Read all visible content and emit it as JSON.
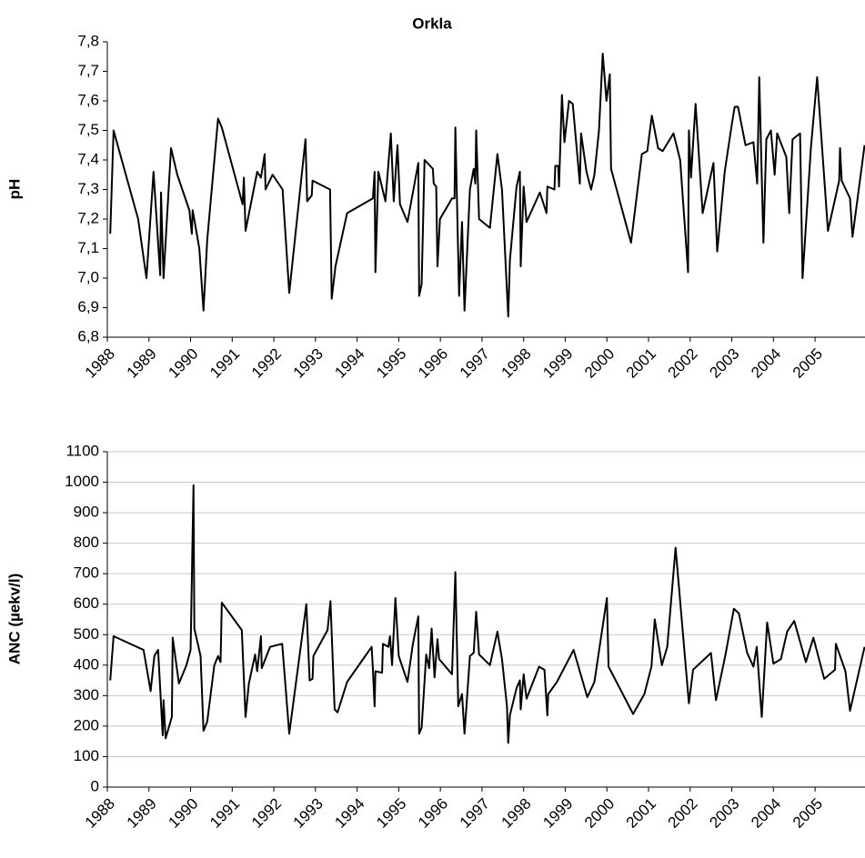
{
  "chart_data": [
    {
      "type": "line",
      "title": "Orkla",
      "y_label": "pH",
      "color": "#000000",
      "grid": false,
      "xlim": [
        1988,
        2006.2
      ],
      "xticks": [
        1988,
        1989,
        1990,
        1991,
        1992,
        1993,
        1994,
        1995,
        1996,
        1997,
        1998,
        1999,
        2000,
        2001,
        2002,
        2003,
        2004,
        2005
      ],
      "ylim": [
        6.8,
        7.8
      ],
      "yticks": [
        {
          "value": 6.8,
          "label": "6,8"
        },
        {
          "value": 6.9,
          "label": "6,9"
        },
        {
          "value": 7.0,
          "label": "7,0"
        },
        {
          "value": 7.1,
          "label": "7,1"
        },
        {
          "value": 7.2,
          "label": "7,2"
        },
        {
          "value": 7.3,
          "label": "7,3"
        },
        {
          "value": 7.4,
          "label": "7,4"
        },
        {
          "value": 7.5,
          "label": "7,5"
        },
        {
          "value": 7.6,
          "label": "7,6"
        },
        {
          "value": 7.7,
          "label": "7,7"
        },
        {
          "value": 7.8,
          "label": "7,8"
        }
      ],
      "x": [
        1988.07,
        1988.15,
        1988.74,
        1988.94,
        1989.11,
        1989.27,
        1989.29,
        1989.35,
        1989.53,
        1989.68,
        1989.97,
        1990.03,
        1990.05,
        1990.21,
        1990.31,
        1990.4,
        1990.66,
        1990.75,
        1991.25,
        1991.28,
        1991.32,
        1991.6,
        1991.69,
        1991.78,
        1991.8,
        1991.97,
        1992.21,
        1992.37,
        1992.76,
        1992.8,
        1992.91,
        1992.93,
        1993.35,
        1993.39,
        1993.48,
        1993.76,
        1994.38,
        1994.42,
        1994.44,
        1994.51,
        1994.68,
        1994.81,
        1994.88,
        1994.97,
        1995.03,
        1995.21,
        1995.47,
        1995.49,
        1995.55,
        1995.62,
        1995.82,
        1995.84,
        1995.9,
        1995.93,
        1995.99,
        1996.28,
        1996.34,
        1996.36,
        1996.45,
        1996.52,
        1996.58,
        1996.71,
        1996.8,
        1996.84,
        1996.86,
        1996.93,
        1997.19,
        1997.37,
        1997.48,
        1997.63,
        1997.67,
        1997.83,
        1997.91,
        1997.93,
        1998.0,
        1998.07,
        1998.39,
        1998.55,
        1998.57,
        1998.74,
        1998.76,
        1998.83,
        1998.85,
        1998.92,
        1998.98,
        1999.09,
        1999.18,
        1999.35,
        1999.38,
        1999.51,
        1999.62,
        1999.7,
        1999.81,
        1999.9,
        1999.99,
        2000.07,
        2000.1,
        2000.58,
        2000.84,
        2000.97,
        2001.08,
        2001.23,
        2001.34,
        2001.6,
        2001.76,
        2001.95,
        2001.97,
        2002.02,
        2002.13,
        2002.3,
        2002.56,
        2002.65,
        2002.83,
        2003.0,
        2003.07,
        2003.15,
        2003.33,
        2003.52,
        2003.61,
        2003.66,
        2003.76,
        2003.83,
        2003.94,
        2004.03,
        2004.09,
        2004.31,
        2004.38,
        2004.46,
        2004.64,
        2004.7,
        2004.9,
        2005.05,
        2005.31,
        2005.58,
        2005.6,
        2005.64,
        2005.84,
        2005.9,
        2006.19
      ],
      "values": [
        7.15,
        7.5,
        7.2,
        7.0,
        7.36,
        7.01,
        7.29,
        7.0,
        7.44,
        7.35,
        7.23,
        7.15,
        7.23,
        7.1,
        6.89,
        7.13,
        7.54,
        7.51,
        7.25,
        7.34,
        7.16,
        7.36,
        7.34,
        7.42,
        7.3,
        7.35,
        7.3,
        6.95,
        7.47,
        7.26,
        7.28,
        7.33,
        7.3,
        6.93,
        7.04,
        7.22,
        7.27,
        7.36,
        7.02,
        7.36,
        7.26,
        7.49,
        7.26,
        7.45,
        7.25,
        7.19,
        7.39,
        6.94,
        6.98,
        7.4,
        7.37,
        7.32,
        7.31,
        7.04,
        7.2,
        7.27,
        7.27,
        7.51,
        6.94,
        7.19,
        6.89,
        7.3,
        7.37,
        7.32,
        7.5,
        7.2,
        7.17,
        7.42,
        7.3,
        6.87,
        7.06,
        7.31,
        7.36,
        7.04,
        7.31,
        7.19,
        7.29,
        7.22,
        7.31,
        7.3,
        7.38,
        7.38,
        7.31,
        7.62,
        7.46,
        7.6,
        7.59,
        7.32,
        7.49,
        7.36,
        7.3,
        7.35,
        7.5,
        7.76,
        7.6,
        7.69,
        7.37,
        7.12,
        7.42,
        7.43,
        7.55,
        7.44,
        7.43,
        7.49,
        7.4,
        7.02,
        7.5,
        7.34,
        7.59,
        7.22,
        7.39,
        7.09,
        7.36,
        7.52,
        7.58,
        7.58,
        7.45,
        7.46,
        7.32,
        7.68,
        7.12,
        7.47,
        7.5,
        7.35,
        7.49,
        7.41,
        7.22,
        7.47,
        7.49,
        7.0,
        7.44,
        7.68,
        7.16,
        7.33,
        7.44,
        7.33,
        7.27,
        7.14,
        7.45
      ]
    },
    {
      "type": "line",
      "y_label": "ANC (µekv/l)",
      "color": "#000000",
      "grid": true,
      "xlim": [
        1988,
        2006.2
      ],
      "xticks": [
        1988,
        1989,
        1990,
        1991,
        1992,
        1993,
        1994,
        1995,
        1996,
        1997,
        1998,
        1999,
        2000,
        2001,
        2002,
        2003,
        2004,
        2005
      ],
      "ylim": [
        0,
        1100
      ],
      "yticks": [
        0,
        100,
        200,
        300,
        400,
        500,
        600,
        700,
        800,
        900,
        1000,
        1100
      ],
      "x": [
        1988.07,
        1988.15,
        1988.87,
        1989.04,
        1989.13,
        1989.22,
        1989.33,
        1989.35,
        1989.4,
        1989.55,
        1989.57,
        1989.72,
        1989.9,
        1990.0,
        1990.07,
        1990.09,
        1990.24,
        1990.31,
        1990.4,
        1990.57,
        1990.66,
        1990.72,
        1990.75,
        1991.23,
        1991.32,
        1991.4,
        1991.55,
        1991.6,
        1991.69,
        1991.71,
        1991.91,
        1992.2,
        1992.37,
        1992.78,
        1992.86,
        1992.93,
        1992.95,
        1993.29,
        1993.36,
        1993.46,
        1993.53,
        1993.76,
        1994.35,
        1994.38,
        1994.42,
        1994.44,
        1994.6,
        1994.62,
        1994.75,
        1994.79,
        1994.84,
        1994.92,
        1995.0,
        1995.21,
        1995.34,
        1995.47,
        1995.49,
        1995.55,
        1995.66,
        1995.73,
        1995.79,
        1995.86,
        1995.93,
        1995.97,
        1996.28,
        1996.36,
        1996.43,
        1996.52,
        1996.58,
        1996.71,
        1996.8,
        1996.86,
        1996.93,
        1997.19,
        1997.37,
        1997.48,
        1997.6,
        1997.63,
        1997.67,
        1997.83,
        1997.91,
        1997.93,
        1998.0,
        1998.07,
        1998.37,
        1998.5,
        1998.57,
        1998.59,
        1998.8,
        1999.2,
        1999.53,
        1999.7,
        2000.0,
        2000.04,
        2000.63,
        2000.9,
        2001.07,
        2001.15,
        2001.32,
        2001.45,
        2001.65,
        2001.97,
        2002.07,
        2002.5,
        2002.62,
        2002.85,
        2003.05,
        2003.17,
        2003.37,
        2003.52,
        2003.6,
        2003.72,
        2003.85,
        2004.0,
        2004.18,
        2004.33,
        2004.5,
        2004.78,
        2004.96,
        2005.22,
        2005.48,
        2005.5,
        2005.73,
        2005.84,
        2006.19
      ],
      "values": [
        350,
        495,
        450,
        315,
        430,
        450,
        170,
        285,
        160,
        230,
        490,
        340,
        400,
        450,
        990,
        520,
        430,
        185,
        215,
        400,
        430,
        410,
        605,
        515,
        230,
        340,
        435,
        380,
        495,
        390,
        460,
        470,
        175,
        600,
        350,
        355,
        430,
        515,
        610,
        255,
        245,
        345,
        460,
        385,
        265,
        380,
        375,
        470,
        460,
        495,
        400,
        620,
        430,
        345,
        470,
        560,
        175,
        195,
        435,
        390,
        520,
        360,
        485,
        420,
        370,
        705,
        265,
        305,
        175,
        430,
        440,
        575,
        435,
        400,
        510,
        420,
        265,
        145,
        235,
        325,
        350,
        255,
        370,
        290,
        395,
        385,
        235,
        305,
        345,
        450,
        295,
        345,
        620,
        395,
        240,
        305,
        395,
        550,
        400,
        460,
        785,
        275,
        385,
        440,
        285,
        435,
        585,
        570,
        440,
        395,
        460,
        230,
        540,
        405,
        420,
        510,
        545,
        410,
        490,
        355,
        385,
        470,
        380,
        250,
        460
      ]
    }
  ]
}
